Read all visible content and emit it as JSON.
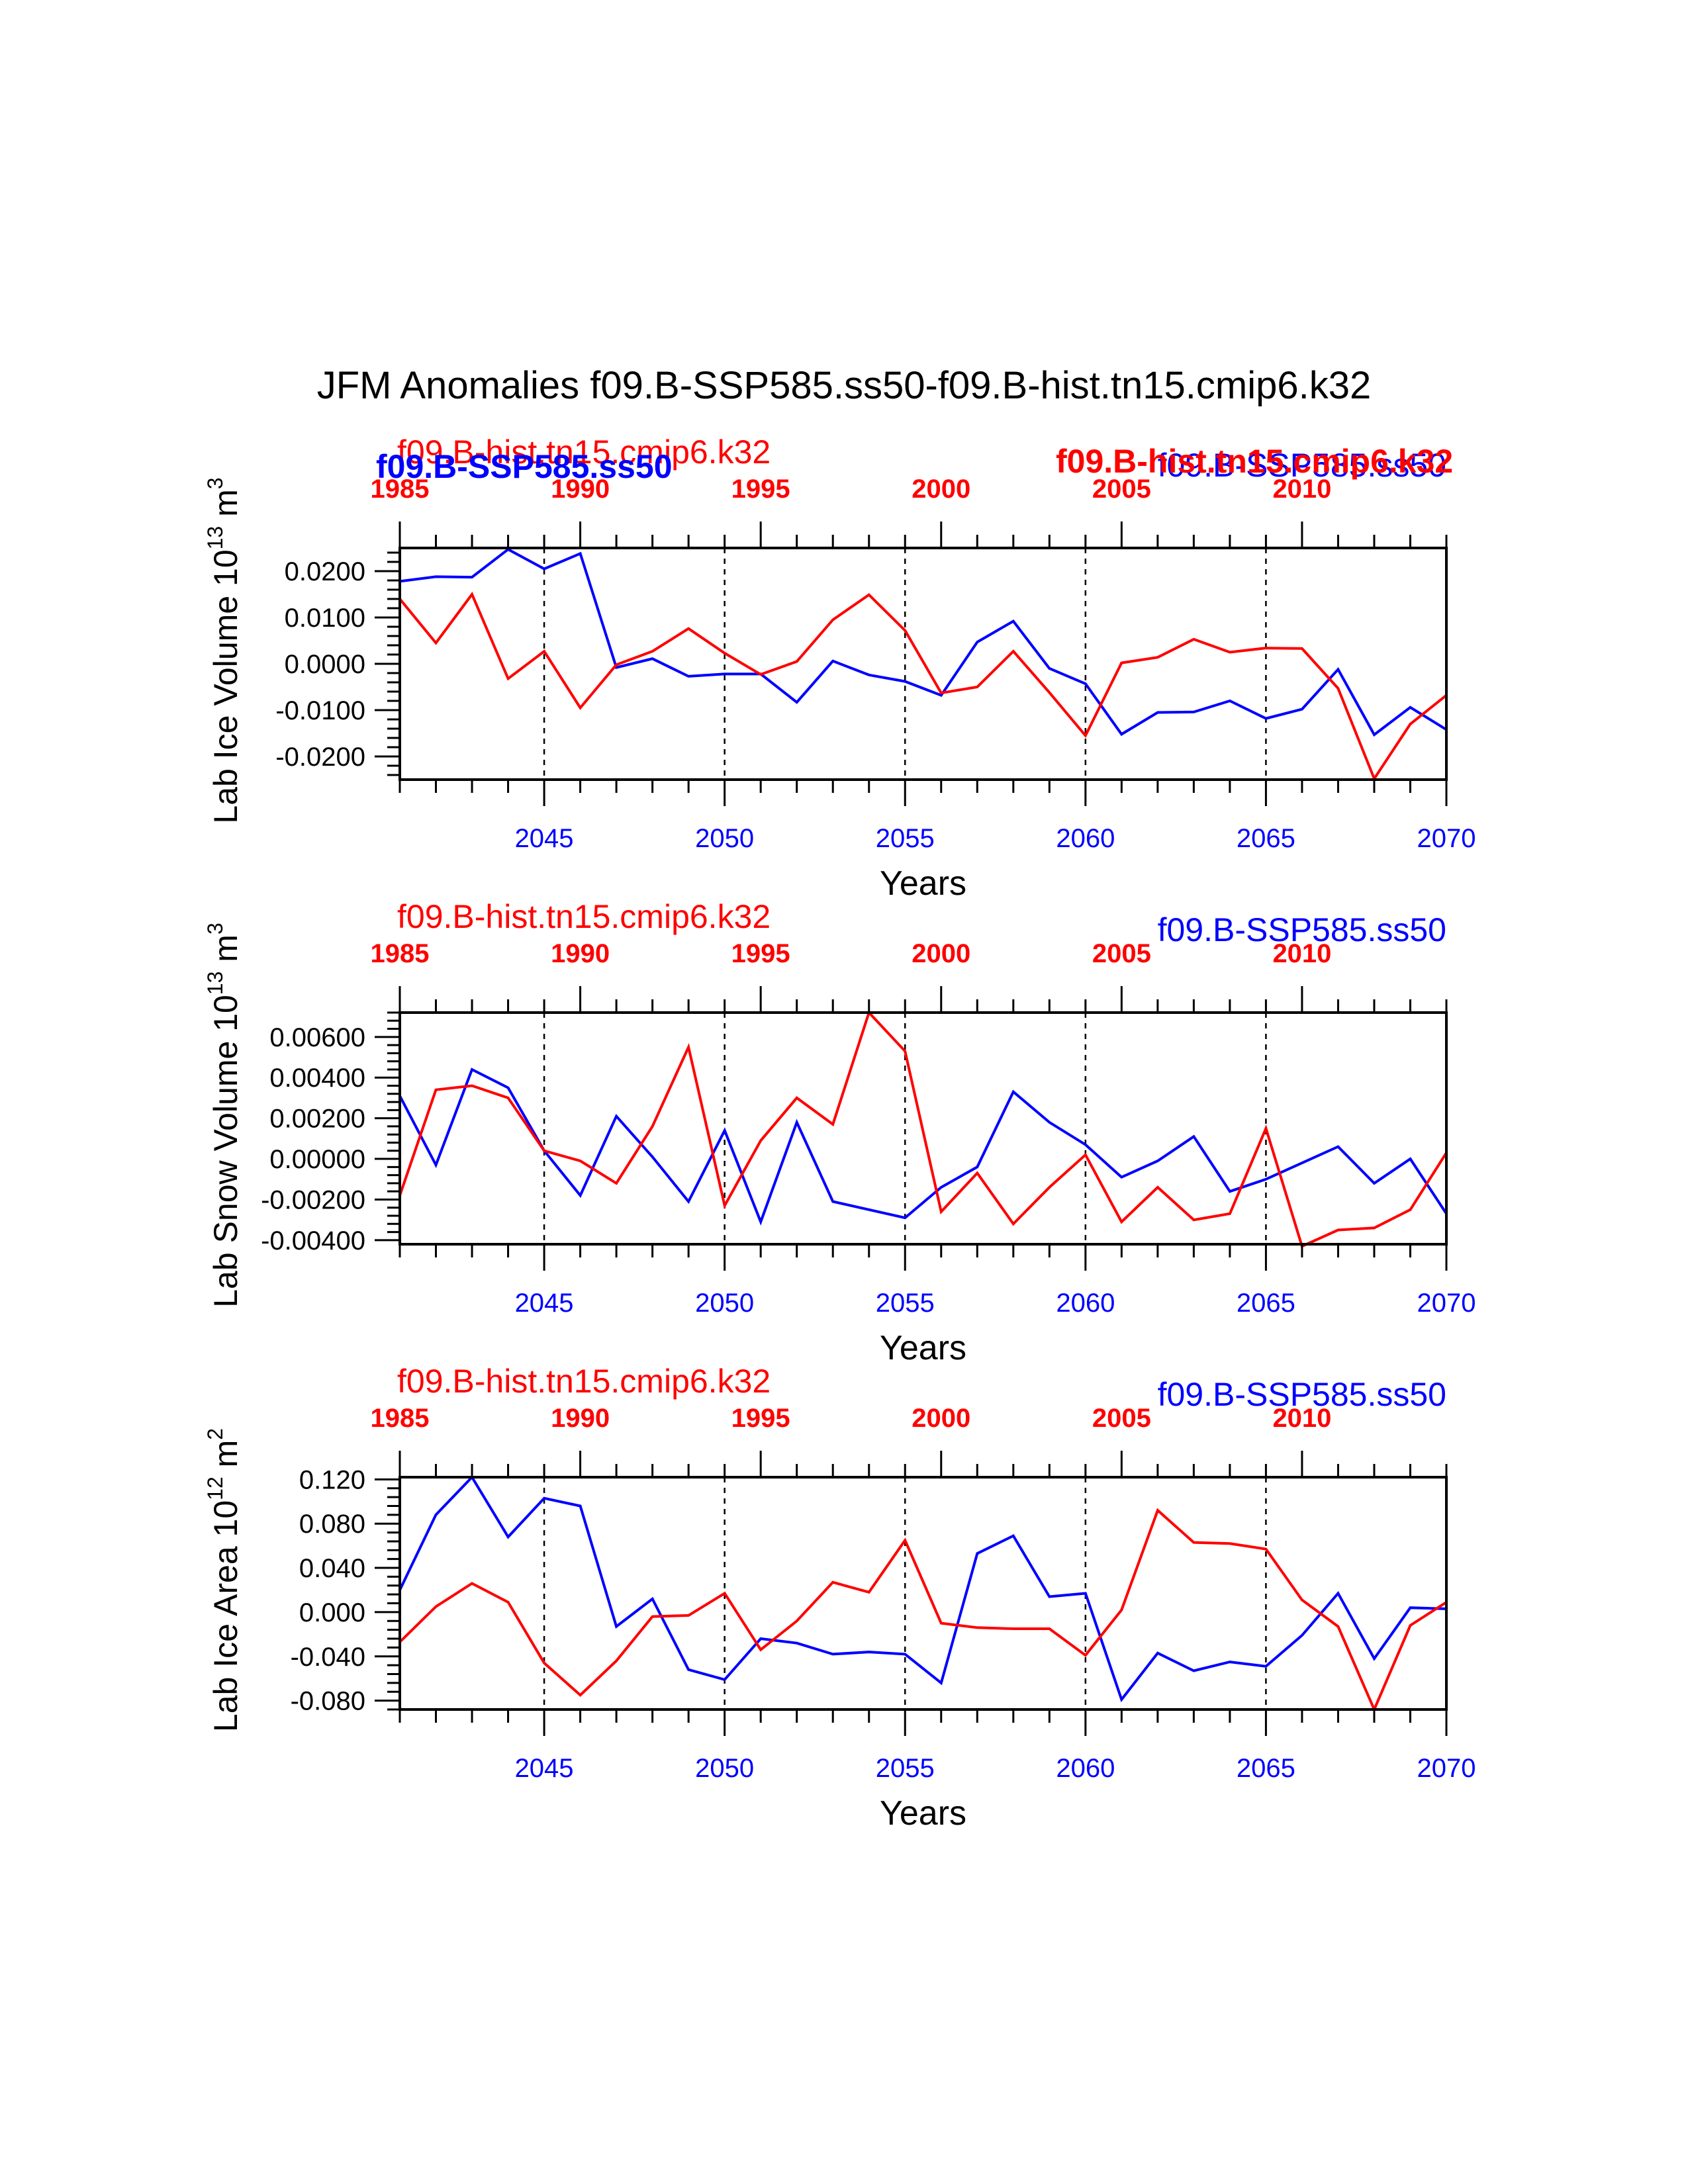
{
  "figure": {
    "title": "JFM Anomalies f09.B-SSP585.ss50-f09.B-hist.tn15.cmip6.k32",
    "colors": {
      "ssp": "#0000ff",
      "hist": "#ff0000",
      "axis": "#000000"
    },
    "stray_labels": {
      "panel1_bold_blue": "f09.B-SSP585.ss50",
      "panel1_bold_red": "f09.B-hist.tn15.cmip6.k32"
    }
  },
  "chart_data": [
    {
      "type": "line",
      "ylabel": "Lab Ice Volume 10",
      "ylabel_exp": "13",
      "ylabel_unit": " m",
      "ylabel_unit_exp": "3",
      "xlabel": "Years",
      "top_series_label": "f09.B-hist.tn15.cmip6.k32",
      "bottom_series_label": "f09.B-SSP585.ss50",
      "bottom_axis": {
        "min": 2041,
        "max": 2070,
        "ticks": [
          "2045",
          "2050",
          "2055",
          "2060",
          "2065",
          "2070"
        ]
      },
      "top_axis": {
        "min": 1985,
        "max": 2014,
        "ticks": [
          "1985",
          "1990",
          "1995",
          "2000",
          "2005",
          "2010"
        ]
      },
      "ylim": [
        -0.025,
        0.025
      ],
      "yticks": [
        "0.0200",
        "0.0100",
        "0.0000",
        "-0.0100",
        "-0.0200"
      ],
      "grid": "dashed vertical lines every 5 years",
      "x": [
        2041,
        2042,
        2043,
        2044,
        2045,
        2046,
        2047,
        2048,
        2049,
        2050,
        2051,
        2052,
        2053,
        2054,
        2055,
        2056,
        2057,
        2058,
        2059,
        2060,
        2061,
        2062,
        2063,
        2064,
        2065,
        2066,
        2067,
        2068,
        2069,
        2070
      ],
      "series": [
        {
          "name": "f09.B-SSP585.ss50",
          "color": "#0000ff",
          "values": [
            0.0178,
            0.0188,
            0.0187,
            0.0247,
            0.0205,
            0.0238,
            -0.0008,
            0.0011,
            -0.0027,
            -0.0022,
            -0.0022,
            -0.0083,
            0.0006,
            -0.0024,
            -0.0038,
            -0.0068,
            0.0047,
            0.0092,
            -0.001,
            -0.0043,
            -0.0152,
            -0.0105,
            -0.0104,
            -0.008,
            -0.0118,
            -0.0098,
            -0.0012,
            -0.0153,
            -0.0094,
            -0.0142
          ]
        },
        {
          "name": "f09.B-hist.tn15.cmip6.k32",
          "color": "#ff0000",
          "values": [
            0.014,
            0.0045,
            0.015,
            -0.0032,
            0.0027,
            -0.0095,
            -0.0002,
            0.0027,
            0.0076,
            0.0023,
            -0.0023,
            0.0005,
            0.0095,
            0.0149,
            0.0072,
            -0.0063,
            -0.005,
            0.0027,
            -0.0062,
            -0.0155,
            0.0002,
            0.0014,
            0.0053,
            0.0025,
            0.0034,
            0.0033,
            -0.0053,
            -0.0248,
            -0.013,
            -0.0068
          ]
        }
      ]
    },
    {
      "type": "line",
      "ylabel": "Lab Snow Volume 10",
      "ylabel_exp": "13",
      "ylabel_unit": " m",
      "ylabel_unit_exp": "3",
      "xlabel": "Years",
      "top_series_label": "f09.B-hist.tn15.cmip6.k32",
      "bottom_series_label": "f09.B-SSP585.ss50",
      "bottom_axis": {
        "min": 2041,
        "max": 2070,
        "ticks": [
          "2045",
          "2050",
          "2055",
          "2060",
          "2065",
          "2070"
        ]
      },
      "top_axis": {
        "min": 1985,
        "max": 2014,
        "ticks": [
          "1985",
          "1990",
          "1995",
          "2000",
          "2005",
          "2010"
        ]
      },
      "ylim": [
        -0.0042,
        0.0072
      ],
      "yticks": [
        "0.00600",
        "0.00400",
        "0.00200",
        "0.00000",
        "-0.00200",
        "-0.00400"
      ],
      "grid": "dashed vertical lines every 5 years",
      "x": [
        2041,
        2042,
        2043,
        2044,
        2045,
        2046,
        2047,
        2048,
        2049,
        2050,
        2051,
        2052,
        2053,
        2054,
        2055,
        2056,
        2057,
        2058,
        2059,
        2060,
        2061,
        2062,
        2063,
        2064,
        2065,
        2066,
        2067,
        2068,
        2069,
        2070
      ],
      "series": [
        {
          "name": "f09.B-SSP585.ss50",
          "color": "#0000ff",
          "values": [
            0.0031,
            -0.0003,
            0.0044,
            0.0035,
            0.0004,
            -0.0018,
            0.0021,
            0.0001,
            -0.0021,
            0.0014,
            -0.0031,
            0.0018,
            -0.0021,
            -0.0025,
            -0.0029,
            -0.0014,
            -0.0004,
            0.0033,
            0.0018,
            0.0007,
            -0.0009,
            -0.0001,
            0.0011,
            -0.0016,
            -0.001,
            -0.0002,
            0.0006,
            -0.0012,
            0.0,
            -0.0027
          ]
        },
        {
          "name": "f09.B-hist.tn15.cmip6.k32",
          "color": "#ff0000",
          "values": [
            -0.0018,
            0.0034,
            0.0036,
            0.003,
            0.0004,
            -0.0001,
            -0.0012,
            0.0016,
            0.0055,
            -0.0023,
            0.0009,
            0.003,
            0.0017,
            0.0072,
            0.0053,
            -0.0026,
            -0.0007,
            -0.0032,
            -0.0014,
            0.0002,
            -0.0031,
            -0.0014,
            -0.003,
            -0.0027,
            0.0015,
            -0.0043,
            -0.0035,
            -0.0034,
            -0.0025,
            0.0003
          ]
        }
      ]
    },
    {
      "type": "line",
      "ylabel": "Lab Ice Area 10",
      "ylabel_exp": "12",
      "ylabel_unit": " m",
      "ylabel_unit_exp": "2",
      "xlabel": "Years",
      "top_series_label": "f09.B-hist.tn15.cmip6.k32",
      "bottom_series_label": "f09.B-SSP585.ss50",
      "bottom_axis": {
        "min": 2041,
        "max": 2070,
        "ticks": [
          "2045",
          "2050",
          "2055",
          "2060",
          "2065",
          "2070"
        ]
      },
      "top_axis": {
        "min": 1985,
        "max": 2014,
        "ticks": [
          "1985",
          "1990",
          "1995",
          "2000",
          "2005",
          "2010"
        ]
      },
      "ylim": [
        -0.088,
        0.122
      ],
      "yticks": [
        "0.120",
        "0.080",
        "0.040",
        "0.000",
        "-0.040",
        "-0.080"
      ],
      "grid": "dashed vertical lines every 5 years",
      "x": [
        2041,
        2042,
        2043,
        2044,
        2045,
        2046,
        2047,
        2048,
        2049,
        2050,
        2051,
        2052,
        2053,
        2054,
        2055,
        2056,
        2057,
        2058,
        2059,
        2060,
        2061,
        2062,
        2063,
        2064,
        2065,
        2066,
        2067,
        2068,
        2069,
        2070
      ],
      "series": [
        {
          "name": "f09.B-SSP585.ss50",
          "color": "#0000ff",
          "values": [
            0.02,
            0.088,
            0.122,
            0.068,
            0.103,
            0.096,
            -0.013,
            0.012,
            -0.052,
            -0.061,
            -0.024,
            -0.028,
            -0.038,
            -0.036,
            -0.038,
            -0.064,
            0.053,
            0.069,
            0.014,
            0.017,
            -0.079,
            -0.037,
            -0.053,
            -0.045,
            -0.049,
            -0.021,
            0.017,
            -0.042,
            0.004,
            0.003
          ]
        },
        {
          "name": "f09.B-hist.tn15.cmip6.k32",
          "color": "#ff0000",
          "values": [
            -0.027,
            0.005,
            0.026,
            0.009,
            -0.046,
            -0.075,
            -0.044,
            -0.004,
            -0.003,
            0.017,
            -0.034,
            -0.008,
            0.027,
            0.018,
            0.065,
            -0.01,
            -0.014,
            -0.015,
            -0.015,
            -0.039,
            0.002,
            0.092,
            0.063,
            0.062,
            0.057,
            0.011,
            -0.013,
            -0.088,
            -0.012,
            0.009
          ]
        }
      ]
    }
  ]
}
